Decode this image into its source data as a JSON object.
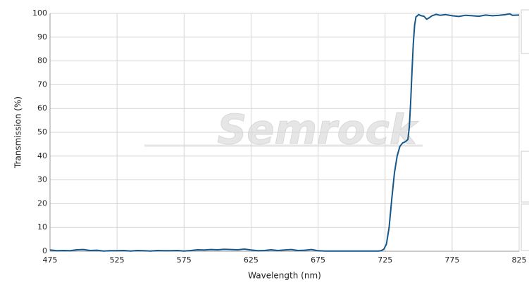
{
  "chart_data": {
    "type": "line",
    "watermark": "Semrock",
    "x_label": "Wavelength (nm)",
    "y_label": "Transmission (%)",
    "xlim": [
      475,
      825
    ],
    "xticks": [
      475,
      525,
      575,
      625,
      675,
      725,
      775,
      825
    ],
    "ylim": [
      0,
      100
    ],
    "yticks": [
      0,
      10,
      20,
      30,
      40,
      50,
      60,
      70,
      80,
      90,
      100
    ],
    "grid": true,
    "series": [
      {
        "color": "#15578a",
        "x": [
          475,
          480,
          485,
          490,
          495,
          500,
          505,
          510,
          515,
          520,
          525,
          530,
          535,
          540,
          545,
          550,
          555,
          560,
          565,
          570,
          575,
          580,
          585,
          590,
          595,
          600,
          605,
          610,
          615,
          620,
          625,
          630,
          635,
          640,
          645,
          650,
          655,
          660,
          665,
          670,
          675,
          680,
          685,
          690,
          695,
          700,
          705,
          710,
          715,
          720,
          722,
          724,
          726,
          728,
          730,
          732,
          734,
          736,
          738,
          740,
          742,
          743,
          744,
          745,
          746,
          747,
          748,
          750,
          752,
          754,
          756,
          758,
          760,
          763,
          766,
          770,
          775,
          780,
          785,
          790,
          795,
          800,
          805,
          810,
          815,
          818,
          820,
          825
        ],
        "values": [
          0.5,
          0.2,
          0.3,
          0.2,
          0.6,
          0.7,
          0.3,
          0.4,
          0.1,
          0.2,
          0.2,
          0.3,
          0.1,
          0.3,
          0.2,
          0.1,
          0.3,
          0.2,
          0.2,
          0.3,
          0.1,
          0.3,
          0.6,
          0.5,
          0.7,
          0.6,
          0.8,
          0.7,
          0.6,
          0.9,
          0.5,
          0.2,
          0.3,
          0.6,
          0.3,
          0.5,
          0.7,
          0.3,
          0.4,
          0.7,
          0.2,
          0.1,
          0.1,
          0.1,
          0.1,
          0.1,
          0.1,
          0.1,
          0.1,
          0.1,
          0.2,
          0.8,
          3,
          10,
          22,
          33,
          40,
          44,
          45.5,
          46,
          47,
          52,
          62,
          75,
          87,
          95,
          98.5,
          99.5,
          99,
          98.8,
          97.5,
          98.2,
          99,
          99.6,
          99.2,
          99.5,
          99,
          98.7,
          99.2,
          99,
          98.8,
          99.3,
          99,
          99.2,
          99.5,
          99.8,
          99.2,
          99.3
        ]
      }
    ]
  }
}
